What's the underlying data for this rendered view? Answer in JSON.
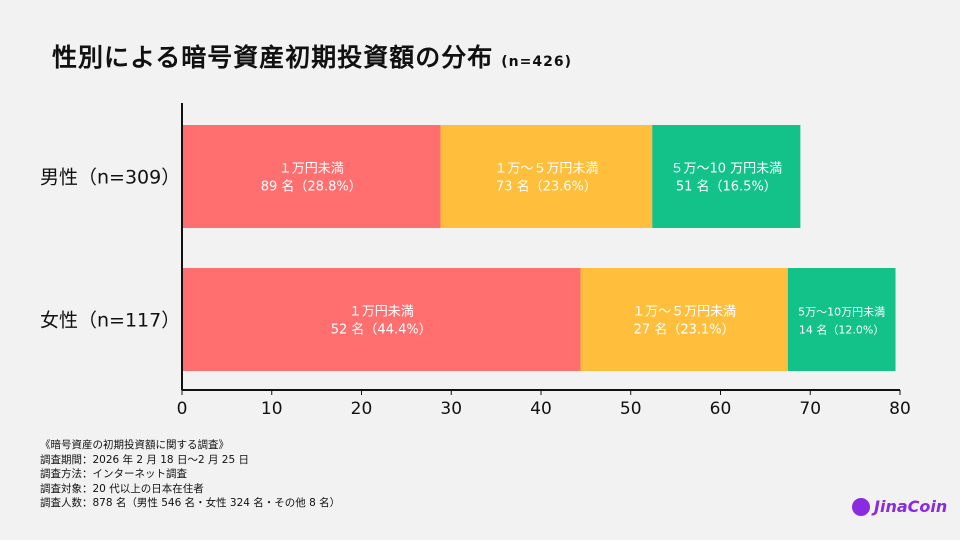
{
  "chart_data": {
    "type": "bar",
    "orientation": "horizontal",
    "stacked": true,
    "title": "性別による暗号資産初期投資額の分布",
    "subtitle": "(n=426)",
    "categories": [
      "男性（n=309）",
      "女性（n=117）"
    ],
    "xlim": [
      0,
      80
    ],
    "xticks": [
      "0",
      "10",
      "20",
      "30",
      "40",
      "50",
      "60",
      "70",
      "80"
    ],
    "grid": false,
    "series": [
      {
        "name": "1万円未満",
        "color": "#ff6f6f",
        "values": [
          28.8,
          44.4
        ],
        "labels": [
          [
            "１万円未満",
            "89 名（28.8%）"
          ],
          [
            "１万円未満",
            "52 名（44.4%）"
          ]
        ]
      },
      {
        "name": "1万〜5万円未満",
        "color": "#ffbe3c",
        "values": [
          23.6,
          23.1
        ],
        "labels": [
          [
            "１万～５万円未満",
            "73 名（23.6%）"
          ],
          [
            "１万～５万円未満",
            "27 名（23.1%）"
          ]
        ]
      },
      {
        "name": "5万〜10万円未満",
        "color": "#12c288",
        "values": [
          16.5,
          12.0
        ],
        "labels": [
          [
            "５万～10 万円未満",
            "51 名（16.5%）"
          ],
          [
            "5万～10万円未満",
            "14 名（12.0%）"
          ]
        ]
      }
    ]
  },
  "notes": [
    "《暗号資産の初期投資額に関する調査》",
    "調査期間：2026 年 2 月 18 日～2 月 25 日",
    "調査方法：インターネット調査",
    "調査対象：20 代以上の日本在住者",
    "調査人数：878 名（男性 546 名・女性 324 名・その他 8 名）"
  ],
  "logo": "JinaCoin"
}
